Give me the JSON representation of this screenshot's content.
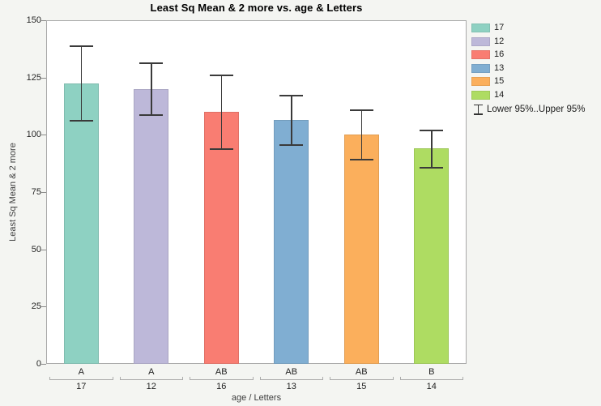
{
  "title": "Least Sq Mean & 2 more vs. age & Letters",
  "colors": {
    "background": "#f4f5f2",
    "plot_background": "#ffffff",
    "plot_border": "#a8a8a8",
    "error_bar": "#3a3a3a",
    "bracket": "#ababab",
    "tick_text": "#262626",
    "axis_label_text": "#3d3d3d"
  },
  "chart_data": {
    "type": "bar",
    "title": "Least Sq Mean & 2 more vs. age & Letters",
    "xlabel": "age / Letters",
    "ylabel": "Least Sq Mean & 2 more",
    "ylim": [
      0,
      150
    ],
    "yticks": [
      0,
      25,
      50,
      75,
      100,
      125,
      150
    ],
    "grid": false,
    "legend_position": "right-top",
    "categories_age": [
      "17",
      "12",
      "16",
      "13",
      "15",
      "14"
    ],
    "categories_letters": [
      "A",
      "A",
      "AB",
      "AB",
      "AB",
      "B"
    ],
    "series": [
      {
        "age": "17",
        "letter": "A",
        "mean": 122.3,
        "lower_95": 106.0,
        "upper_95": 138.8,
        "color": "#8ed1c2"
      },
      {
        "age": "12",
        "letter": "A",
        "mean": 119.9,
        "lower_95": 108.7,
        "upper_95": 131.1,
        "color": "#bdb8d9"
      },
      {
        "age": "16",
        "letter": "AB",
        "mean": 110.1,
        "lower_95": 93.7,
        "upper_95": 125.8,
        "color": "#f97d72"
      },
      {
        "age": "13",
        "letter": "AB",
        "mean": 106.4,
        "lower_95": 95.4,
        "upper_95": 117.0,
        "color": "#80aed2"
      },
      {
        "age": "15",
        "letter": "AB",
        "mean": 100.2,
        "lower_95": 89.3,
        "upper_95": 110.8,
        "color": "#fbaf5c"
      },
      {
        "age": "14",
        "letter": "B",
        "mean": 94.2,
        "lower_95": 85.7,
        "upper_95": 102.0,
        "color": "#aedc62"
      }
    ],
    "error_legend_label": "Lower 95%..Upper 95%"
  },
  "legend": {
    "items": [
      "17",
      "12",
      "16",
      "13",
      "15",
      "14"
    ],
    "error_item": "Lower 95%..Upper 95%"
  }
}
